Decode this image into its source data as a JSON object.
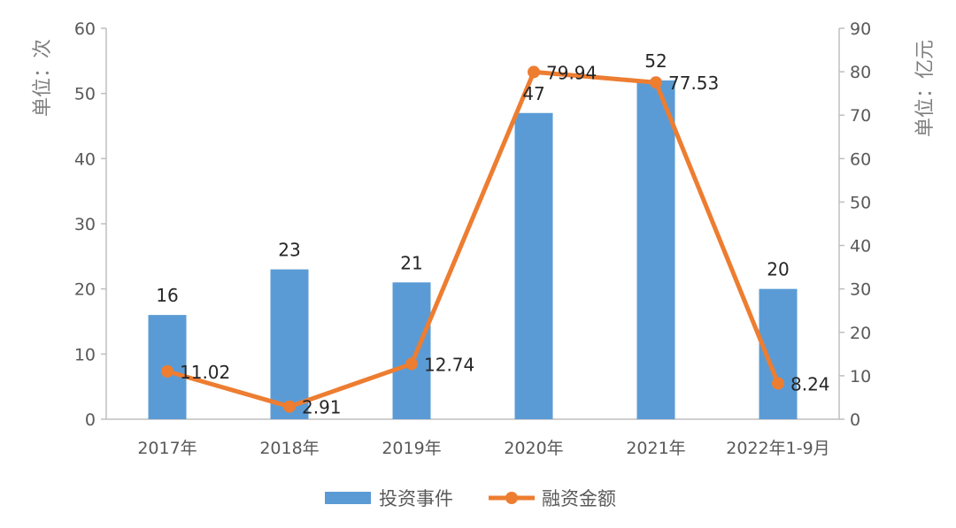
{
  "chart_data": {
    "type": "bar-line",
    "categories": [
      "2017年",
      "2018年",
      "2019年",
      "2020年",
      "2021年",
      "2022年1-9月"
    ],
    "series": [
      {
        "name": "投资事件",
        "type": "bar",
        "axis": "left",
        "values": [
          16,
          23,
          21,
          47,
          52,
          20
        ],
        "color": "#5B9BD5"
      },
      {
        "name": "融资金额",
        "type": "line",
        "axis": "right",
        "values": [
          11.02,
          2.91,
          12.74,
          79.94,
          77.53,
          8.24
        ],
        "color": "#ED7D31"
      }
    ],
    "y_left": {
      "label": "单位：次",
      "min": 0,
      "max": 60,
      "ticks": [
        0,
        10,
        20,
        30,
        40,
        50,
        60
      ]
    },
    "y_right": {
      "label": "单位：亿元",
      "min": 0,
      "max": 90,
      "ticks": [
        0,
        10,
        20,
        30,
        40,
        50,
        60,
        70,
        80,
        90
      ]
    },
    "data_labels": {
      "bar": [
        "16",
        "23",
        "21",
        "47",
        "52",
        "20"
      ],
      "line": [
        "11.02",
        "2.91",
        "12.74",
        "79.94",
        "77.53",
        "8.24"
      ]
    },
    "legend": {
      "position": "bottom"
    },
    "grid": false
  }
}
